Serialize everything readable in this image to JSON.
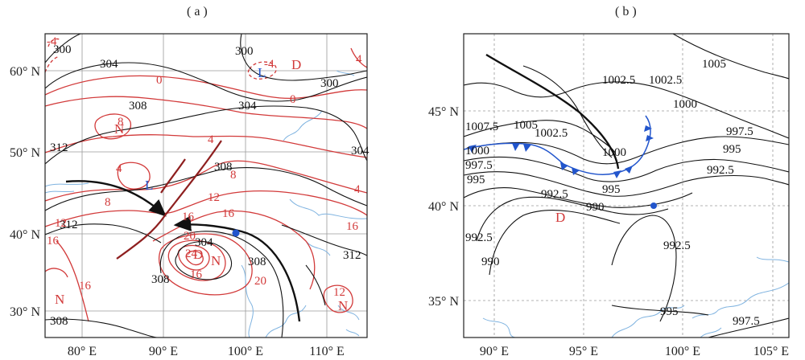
{
  "panels": [
    {
      "label": "( a )",
      "x_ticks": [
        "80° E",
        "90° E",
        "100° E",
        "110° E"
      ],
      "y_ticks": [
        "60° N",
        "50° N",
        "40° N",
        "30° N"
      ],
      "black_labels": [
        "300",
        "304",
        "300",
        "300",
        "304",
        "308",
        "304",
        "312",
        "308",
        "312",
        "304",
        "308",
        "308",
        "312",
        "308"
      ],
      "red_labels": [
        "0",
        "0",
        "4",
        "8",
        "4",
        "8",
        "8",
        "12",
        "4",
        "16",
        "16",
        "20",
        "24",
        "20",
        "16",
        "12",
        "16",
        "16",
        "16",
        "12",
        "4",
        "-4",
        "-4"
      ],
      "symbols": {
        "L1": "L",
        "L2": "L",
        "D1": "D",
        "N1": "N",
        "N2": "N",
        "N3": "N",
        "N4": "N",
        "D2": "D"
      }
    },
    {
      "label": "( b )",
      "x_ticks": [
        "90° E",
        "95° E",
        "100° E",
        "105° E"
      ],
      "y_ticks": [
        "45° N",
        "40° N",
        "35° N"
      ],
      "black_labels": [
        "1005",
        "1002.5",
        "1002.5",
        "1000",
        "997.5",
        "995",
        "992.5",
        "1007.5",
        "1005",
        "1002.5",
        "1000",
        "1000",
        "997.5",
        "995",
        "995",
        "992.5",
        "990",
        "992.5",
        "990",
        "992.5",
        "995",
        "997.5"
      ],
      "symbols": {
        "D": "D"
      }
    }
  ],
  "colors": {
    "isoline": "#111111",
    "temperature": "#d23a3a",
    "front": "#2255cc",
    "coast": "#7fb3e0",
    "grid": "#9a9a9a"
  }
}
